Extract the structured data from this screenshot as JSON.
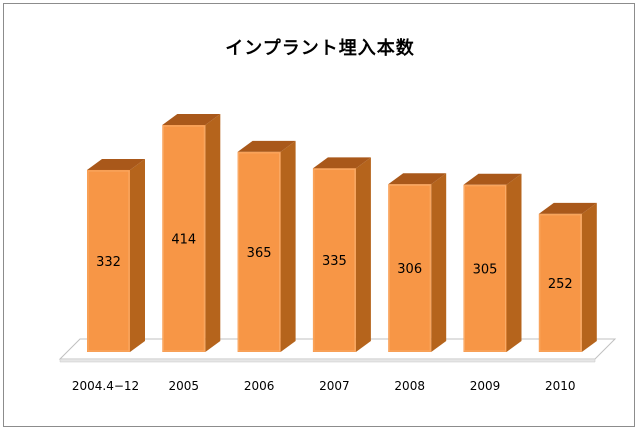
{
  "chart_data": {
    "type": "bar",
    "title": "インプラント埋入本数",
    "categories": [
      "2004.4−12",
      "2005",
      "2006",
      "2007",
      "2008",
      "2009",
      "2010"
    ],
    "values": [
      332,
      414,
      365,
      335,
      306,
      305,
      252
    ],
    "data_labels": [
      "332",
      "414",
      "365",
      "335",
      "306",
      "305",
      "252"
    ],
    "xlabel": "",
    "ylabel": "",
    "ylim": [
      0,
      450
    ],
    "style": "3d-column",
    "legend": "none",
    "grid": false,
    "colors": {
      "bar_front": "#F79646",
      "bar_side": "#B5641C",
      "bar_top": "#A9581A",
      "floor": "#ffffff",
      "floor_edge": "#c0c0c0"
    }
  }
}
